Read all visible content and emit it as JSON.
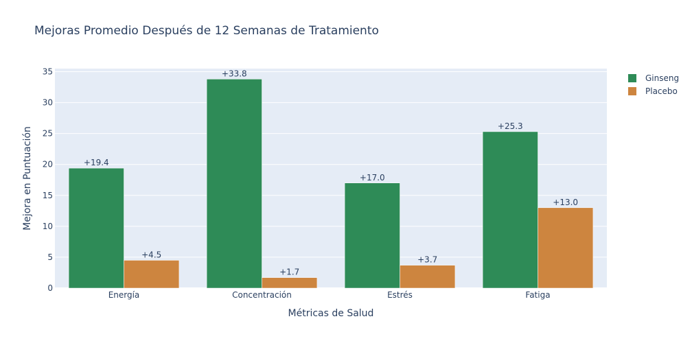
{
  "chart_data": {
    "type": "bar",
    "title": "Mejoras Promedio Después de 12 Semanas de Tratamiento",
    "xlabel": "Métricas de Salud",
    "ylabel": "Mejora en Puntuación",
    "categories": [
      "Energía",
      "Concentración",
      "Estrés",
      "Fatiga"
    ],
    "series": [
      {
        "name": "Ginseng",
        "color": "#2e8b57",
        "values": [
          19.4,
          33.8,
          17.0,
          25.3
        ],
        "labels": [
          "+19.4",
          "+33.8",
          "+17.0",
          "+25.3"
        ]
      },
      {
        "name": "Placebo",
        "color": "#cd853f",
        "values": [
          4.5,
          1.7,
          3.7,
          13.0
        ],
        "labels": [
          "+4.5",
          "+1.7",
          "+3.7",
          "+13.0"
        ]
      }
    ],
    "ylim": [
      0,
      35.5
    ],
    "yticks": [
      0,
      5,
      10,
      15,
      20,
      25,
      30,
      35
    ],
    "grid": true,
    "legend_position": "top-right",
    "plot_background": "#e5ecf6"
  }
}
